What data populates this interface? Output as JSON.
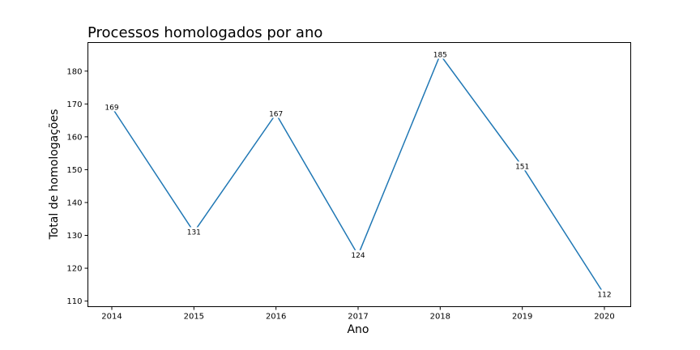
{
  "chart_data": {
    "type": "line",
    "title": "Processos homologados por ano",
    "xlabel": "Ano",
    "ylabel": "Total de homologações",
    "x": [
      "2014",
      "2015",
      "2016",
      "2017",
      "2018",
      "2019",
      "2020"
    ],
    "series": [
      {
        "values": [
          169,
          131,
          167,
          124,
          185,
          151,
          112
        ],
        "color": "#1f77b4"
      }
    ],
    "ylim": [
      108.3,
      188.7
    ],
    "yticks": [
      110,
      120,
      130,
      140,
      150,
      160,
      170,
      180
    ],
    "grid": false,
    "legend": "none"
  }
}
